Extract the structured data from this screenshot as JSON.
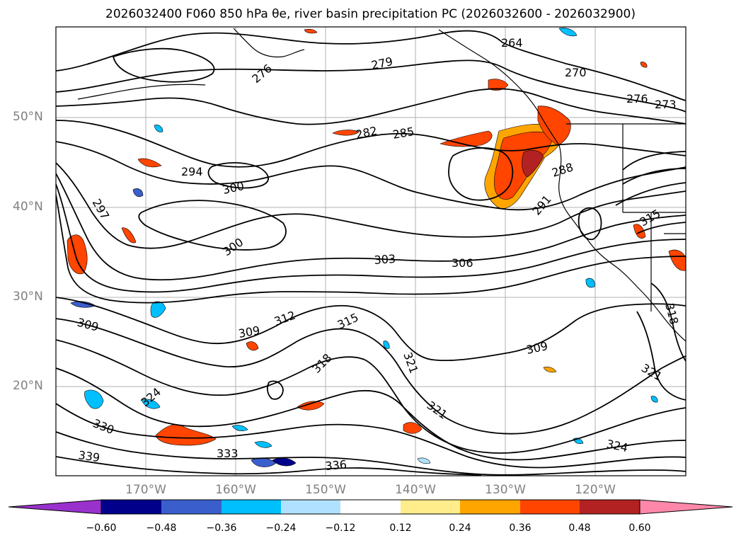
{
  "title": "2026032400 F060 850 hPa θe, river basin precipitation PC (2026032600 - 2026032900)",
  "lat_labels": [
    "50°N",
    "40°N",
    "30°N",
    "20°N"
  ],
  "lon_labels": [
    "170°W",
    "160°W",
    "150°W",
    "140°W",
    "130°W",
    "120°W"
  ],
  "contour_labels": [
    "264",
    "270",
    "273",
    "276",
    "276",
    "279",
    "282",
    "285",
    "288",
    "291",
    "294",
    "297",
    "300",
    "300",
    "303",
    "306",
    "309",
    "309",
    "309",
    "312",
    "315",
    "315",
    "318",
    "318",
    "321",
    "321",
    "321",
    "324",
    "324",
    "330",
    "333",
    "336",
    "339"
  ],
  "colorbar": {
    "ticks": [
      "−0.60",
      "−0.48",
      "−0.36",
      "−0.24",
      "−0.12",
      "0.12",
      "0.24",
      "0.36",
      "0.48",
      "0.60"
    ],
    "colors": [
      "#9932CC",
      "#00008B",
      "#3A5FCD",
      "#00BFFF",
      "#B0E2FF",
      "#FFFFFF",
      "#FFEC8B",
      "#FFA500",
      "#FF4500",
      "#B22222",
      "#FF88AA"
    ]
  }
}
